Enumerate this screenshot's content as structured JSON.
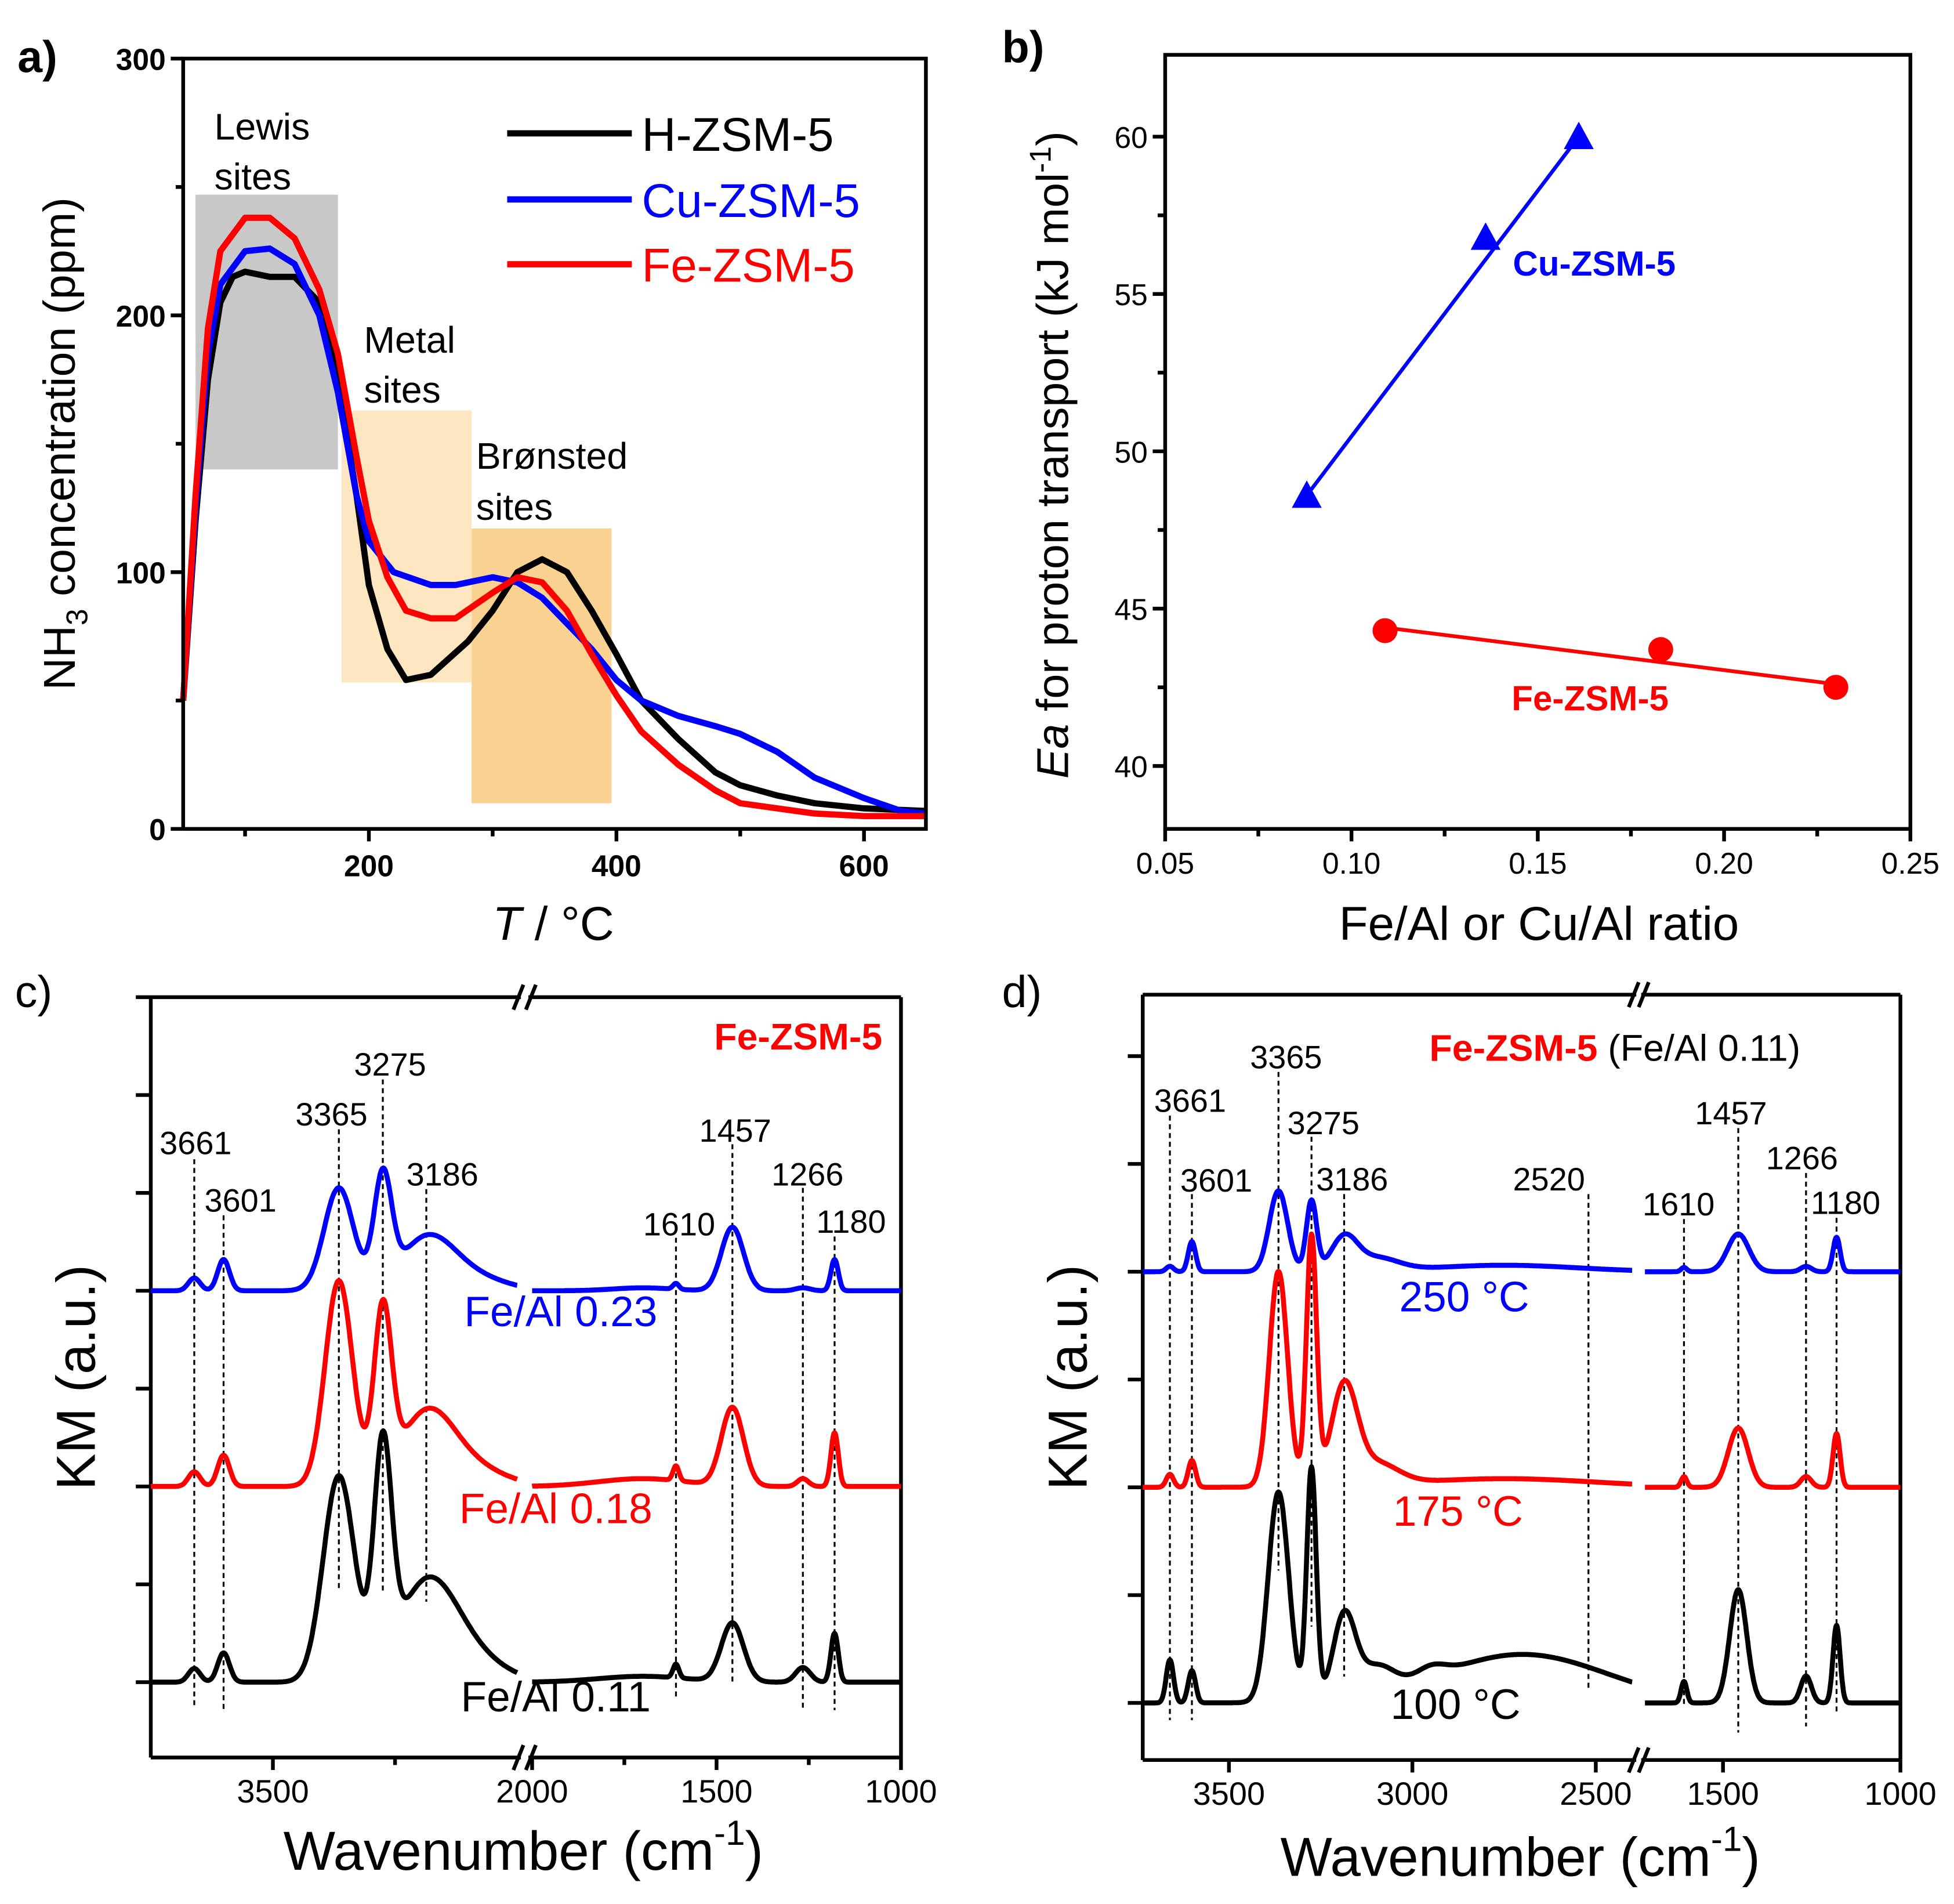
{
  "figure": {
    "panel_labels": [
      "a)",
      "b)",
      "c)",
      "d)"
    ]
  },
  "chart_data": [
    {
      "panel": "a",
      "type": "line",
      "xlabel_italic": "T",
      "xlabel_rest": " / °C",
      "ylabel_main": "NH",
      "ylabel_sub": "3",
      "ylabel_rest": " concentration (ppm)",
      "xlim": [
        50,
        650
      ],
      "ylim": [
        0,
        300
      ],
      "xticks": [
        200,
        400,
        600
      ],
      "xminor": [
        100,
        300,
        500
      ],
      "yticks": [
        0,
        100,
        200,
        300
      ],
      "yminor": [
        50,
        150,
        250
      ],
      "legend_position": "top-right",
      "regions": [
        {
          "label": [
            "Lewis",
            "sites"
          ],
          "x": [
            60,
            175
          ],
          "y": [
            140,
            247
          ],
          "color": "#c8c8c8"
        },
        {
          "label": [
            "Metal",
            "sites"
          ],
          "x": [
            178,
            283
          ],
          "y": [
            57,
            163
          ],
          "color": "#fde6c0"
        },
        {
          "label": [
            "Brønsted",
            "sites"
          ],
          "x": [
            283,
            396
          ],
          "y": [
            10,
            117
          ],
          "color": "#f9d292"
        }
      ],
      "series": [
        {
          "name": "H-ZSM-5",
          "color": "#000000",
          "x": [
            50,
            60,
            70,
            80,
            90,
            100,
            120,
            140,
            160,
            175,
            190,
            200,
            215,
            230,
            250,
            280,
            300,
            320,
            340,
            360,
            380,
            400,
            420,
            450,
            480,
            500,
            530,
            560,
            600,
            650
          ],
          "y": [
            50,
            120,
            175,
            205,
            215,
            217,
            215,
            215,
            205,
            175,
            130,
            95,
            70,
            58,
            60,
            73,
            85,
            100,
            105,
            100,
            85,
            68,
            50,
            35,
            22,
            17,
            13,
            10,
            8,
            7
          ]
        },
        {
          "name": "Cu-ZSM-5",
          "color": "#0000ff",
          "x": [
            50,
            60,
            70,
            80,
            100,
            120,
            140,
            160,
            175,
            190,
            200,
            220,
            250,
            270,
            300,
            320,
            340,
            360,
            380,
            400,
            420,
            450,
            480,
            500,
            530,
            560,
            600,
            630,
            650
          ],
          "y": [
            50,
            125,
            185,
            212,
            225,
            226,
            220,
            200,
            170,
            130,
            112,
            100,
            95,
            95,
            98,
            96,
            90,
            80,
            70,
            58,
            50,
            44,
            40,
            37,
            30,
            20,
            12,
            7,
            6
          ]
        },
        {
          "name": "Fe-ZSM-5",
          "color": "#ff0000",
          "x": [
            50,
            60,
            70,
            80,
            100,
            120,
            140,
            160,
            175,
            190,
            200,
            215,
            230,
            250,
            270,
            300,
            320,
            340,
            360,
            380,
            400,
            420,
            450,
            480,
            500,
            530,
            560,
            600,
            650
          ],
          "y": [
            50,
            130,
            195,
            225,
            238,
            238,
            230,
            210,
            185,
            145,
            120,
            98,
            85,
            82,
            82,
            92,
            98,
            96,
            85,
            68,
            52,
            38,
            25,
            15,
            10,
            8,
            6,
            5,
            5
          ]
        }
      ]
    },
    {
      "panel": "b",
      "type": "scatter",
      "xlabel": "Fe/Al or Cu/Al ratio",
      "ylabel_italic": "Ea",
      "ylabel_rest": " for proton transport (kJ mol",
      "ylabel_sup": "-1",
      "ylabel_end": ")",
      "xlim": [
        0.05,
        0.25
      ],
      "ylim": [
        38,
        62.6
      ],
      "xticks": [
        0.05,
        0.1,
        0.15,
        0.2,
        0.25
      ],
      "xtick_labels": [
        "0.05",
        "0.10",
        "0.15",
        "0.20",
        "0.25"
      ],
      "xminor": [
        0.075,
        0.125,
        0.175,
        0.225
      ],
      "yticks": [
        40,
        45,
        50,
        55,
        60
      ],
      "yminor": [
        42.5,
        47.5,
        52.5,
        57.5
      ],
      "series": [
        {
          "name": "Cu-ZSM-5",
          "color": "#0000ff",
          "marker": "triangle",
          "x": [
            0.088,
            0.136,
            0.161
          ],
          "y": [
            48.6,
            56.8,
            60.0
          ],
          "fit": [
            [
              0.088,
              48.6
            ],
            [
              0.161,
              60.0
            ]
          ]
        },
        {
          "name": "Fe-ZSM-5",
          "color": "#ff0000",
          "marker": "circle",
          "x": [
            0.109,
            0.183,
            0.23
          ],
          "y": [
            44.3,
            43.7,
            42.5
          ],
          "fit": [
            [
              0.109,
              44.4
            ],
            [
              0.23,
              42.6
            ]
          ]
        }
      ]
    },
    {
      "panel": "c",
      "type": "line",
      "title": "Fe-ZSM-5",
      "title_color": "#ff0000",
      "xlabel": "Wavenumber (cm",
      "xlabel_sup": "-1",
      "xlabel_end": ")",
      "ylabel": "KM (a.u.)",
      "segments": [
        [
          3750,
          3000
        ],
        [
          2000,
          1000
        ]
      ],
      "xticks": [
        [
          3500
        ],
        [
          2000,
          1500,
          1000
        ]
      ],
      "xminor": [
        [
          3250
        ],
        [
          1750,
          1250
        ]
      ],
      "yticks": [
        1,
        2,
        3,
        4,
        5,
        6,
        7,
        8
      ],
      "ylim": [
        0.23,
        8.0
      ],
      "peak_labels": [
        "3661",
        "3601",
        "3365",
        "3275",
        "3186",
        "1610",
        "1457",
        "1266",
        "1180"
      ],
      "series": [
        {
          "name": "Fe/Al 0.23",
          "color": "#0000ff",
          "baseline": 5,
          "peaks": [
            [
              3661,
              0.13,
              12
            ],
            [
              3601,
              0.32,
              12
            ],
            [
              3365,
              1.05,
              30
            ],
            [
              3275,
              1.1,
              18
            ],
            [
              3186,
              0.5,
              55
            ],
            [
              3100,
              0.15,
              70
            ],
            [
              1700,
              0.03,
              80
            ],
            [
              1610,
              0.06,
              8
            ],
            [
              1457,
              0.65,
              30
            ],
            [
              1266,
              0.03,
              20
            ],
            [
              1180,
              0.32,
              10
            ]
          ]
        },
        {
          "name": "Fe/Al 0.18",
          "color": "#ff0000",
          "baseline": 3,
          "peaks": [
            [
              3661,
              0.15,
              12
            ],
            [
              3601,
              0.32,
              12
            ],
            [
              3365,
              2.1,
              28
            ],
            [
              3275,
              1.7,
              18
            ],
            [
              3186,
              0.7,
              55
            ],
            [
              3100,
              0.2,
              70
            ],
            [
              1700,
              0.08,
              120
            ],
            [
              1610,
              0.15,
              8
            ],
            [
              1457,
              0.8,
              30
            ],
            [
              1266,
              0.08,
              15
            ],
            [
              1180,
              0.55,
              10
            ]
          ]
        },
        {
          "name": "Fe/Al 0.11",
          "color": "#000000",
          "baseline": 1,
          "peaks": [
            [
              3661,
              0.14,
              12
            ],
            [
              3601,
              0.3,
              12
            ],
            [
              3365,
              2.1,
              32
            ],
            [
              3275,
              2.2,
              18
            ],
            [
              3186,
              0.95,
              60
            ],
            [
              3100,
              0.25,
              70
            ],
            [
              1700,
              0.06,
              120
            ],
            [
              1610,
              0.14,
              8
            ],
            [
              1457,
              0.6,
              30
            ],
            [
              1266,
              0.15,
              20
            ],
            [
              1180,
              0.5,
              10
            ]
          ]
        }
      ]
    },
    {
      "panel": "d",
      "type": "line",
      "title_bold": "Fe-ZSM-5",
      "title_rest": " (Fe/Al 0.11)",
      "title_color": "#ff0000",
      "xlabel": "Wavenumber (cm",
      "xlabel_sup": "-1",
      "xlabel_end": ")",
      "ylabel": "KM (a.u.)",
      "segments": [
        [
          3735,
          2400
        ],
        [
          1720,
          1000
        ]
      ],
      "xticks": [
        [
          3500,
          3000,
          2500
        ],
        [
          1500,
          1000
        ]
      ],
      "yticks": [
        1,
        2,
        3,
        4,
        5,
        6,
        7
      ],
      "ylim": [
        0.47,
        7.57
      ],
      "peak_labels": [
        "3661",
        "3601",
        "3365",
        "3275",
        "3186",
        "2520",
        "1610",
        "1457",
        "1266",
        "1180"
      ],
      "series": [
        {
          "name": "250 °C",
          "color": "#0000ff",
          "baseline": 5,
          "peaks": [
            [
              3661,
              0.05,
              10
            ],
            [
              3601,
              0.28,
              10
            ],
            [
              3365,
              0.75,
              25
            ],
            [
              3275,
              0.65,
              14
            ],
            [
              3186,
              0.3,
              35
            ],
            [
              3100,
              0.12,
              60
            ],
            [
              2750,
              0.06,
              200
            ],
            [
              1610,
              0.04,
              8
            ],
            [
              1457,
              0.35,
              30
            ],
            [
              1266,
              0.05,
              15
            ],
            [
              1180,
              0.32,
              10
            ]
          ]
        },
        {
          "name": "175 °C",
          "color": "#ff0000",
          "baseline": 3,
          "peaks": [
            [
              3661,
              0.12,
              10
            ],
            [
              3601,
              0.25,
              10
            ],
            [
              3365,
              2.0,
              25
            ],
            [
              3275,
              2.3,
              14
            ],
            [
              3186,
              0.9,
              35
            ],
            [
              3100,
              0.2,
              60
            ],
            [
              2750,
              0.08,
              250
            ],
            [
              1610,
              0.1,
              8
            ],
            [
              1457,
              0.55,
              28
            ],
            [
              1266,
              0.1,
              15
            ],
            [
              1180,
              0.5,
              10
            ]
          ]
        },
        {
          "name": "100 °C",
          "color": "#000000",
          "baseline": 1,
          "peaks": [
            [
              3661,
              0.4,
              10
            ],
            [
              3601,
              0.3,
              10
            ],
            [
              3365,
              1.95,
              28
            ],
            [
              3275,
              2.15,
              13
            ],
            [
              3186,
              0.75,
              30
            ],
            [
              3100,
              0.25,
              50
            ],
            [
              2950,
              0.1,
              40
            ],
            [
              2700,
              0.45,
              230
            ],
            [
              1610,
              0.2,
              8
            ],
            [
              1457,
              1.05,
              24
            ],
            [
              1266,
              0.25,
              15
            ],
            [
              1180,
              0.72,
              10
            ]
          ]
        }
      ]
    }
  ]
}
